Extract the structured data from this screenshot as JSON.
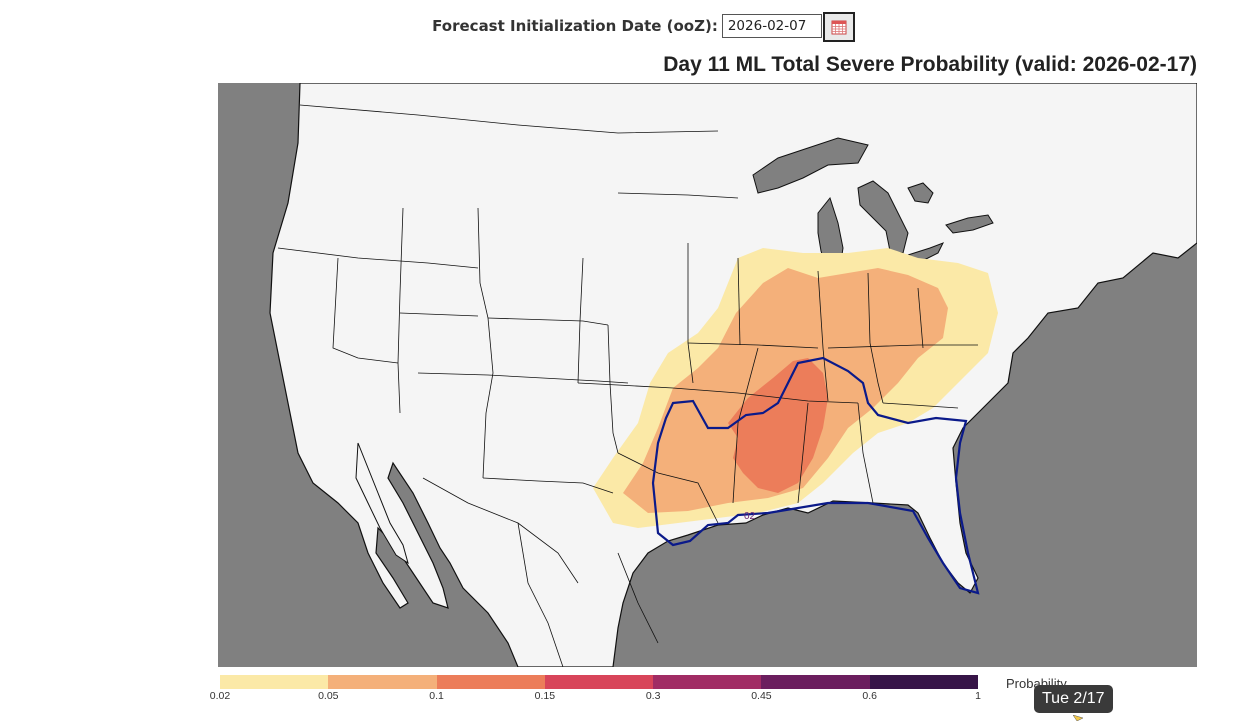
{
  "header": {
    "date_label": "Forecast Initialization Date (ooZ):",
    "date_value": "2026-02-07"
  },
  "map": {
    "title": "Day 11 ML Total Severe Probability (valid: 2026-02-17)",
    "contour_label": "02",
    "colors": {
      "ocean": "#808080",
      "land": "#f5f5f5",
      "border": "#111111",
      "outline": "#0b1a8a"
    }
  },
  "colorbar": {
    "label": "Probability",
    "ticks": [
      "0.02",
      "0.05",
      "0.1",
      "0.15",
      "0.3",
      "0.45",
      "0.6",
      "1"
    ],
    "colors": [
      "#fbe9a7",
      "#f4b07a",
      "#ec7d5a",
      "#d8455a",
      "#a12c64",
      "#6b1e5e",
      "#371548"
    ]
  },
  "tooltip": {
    "text": "Tue 2/17"
  }
}
